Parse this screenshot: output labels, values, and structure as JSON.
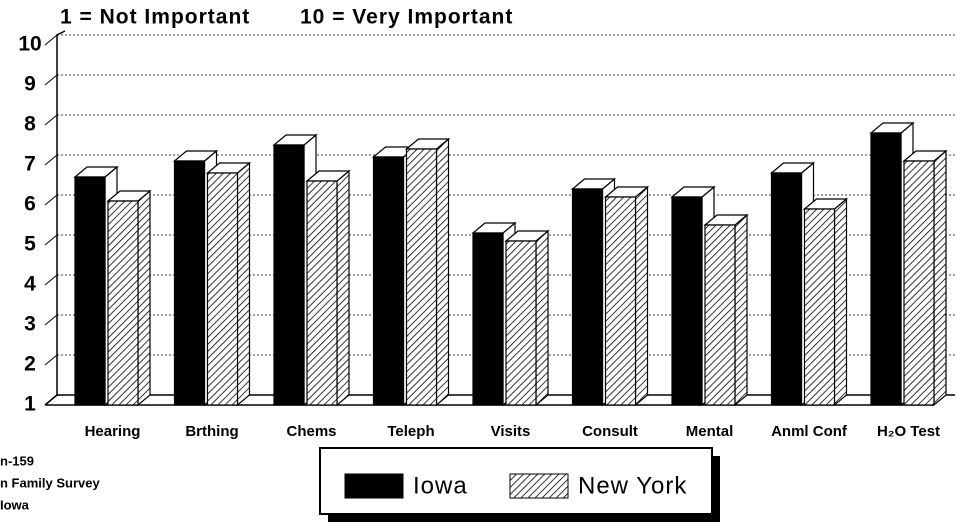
{
  "chart_data": {
    "type": "bar3d",
    "annotations": [
      "1 = Not Important",
      "10 = Very Important"
    ],
    "source_lines": [
      "n-159",
      "n Family Survey",
      "Iowa"
    ],
    "categories": [
      "Hearing",
      "Brthing",
      "Chems",
      "Teleph",
      "Visits",
      "Consult",
      "Mental",
      "Anml Conf",
      "H₂O Test"
    ],
    "series": [
      {
        "name": "Iowa",
        "color": "#000000",
        "pattern": "solid",
        "values": [
          6.7,
          7.1,
          7.5,
          7.2,
          5.3,
          6.4,
          6.2,
          6.8,
          7.8
        ]
      },
      {
        "name": "New York",
        "color": "#000000",
        "pattern": "hatch",
        "values": [
          6.1,
          6.8,
          6.6,
          7.4,
          5.1,
          6.2,
          5.5,
          5.9,
          7.1
        ]
      }
    ],
    "ylim": [
      1,
      10
    ],
    "yticks": [
      1,
      2,
      3,
      4,
      5,
      6,
      7,
      8,
      9,
      10
    ],
    "grid": true,
    "legend": "bottom"
  }
}
